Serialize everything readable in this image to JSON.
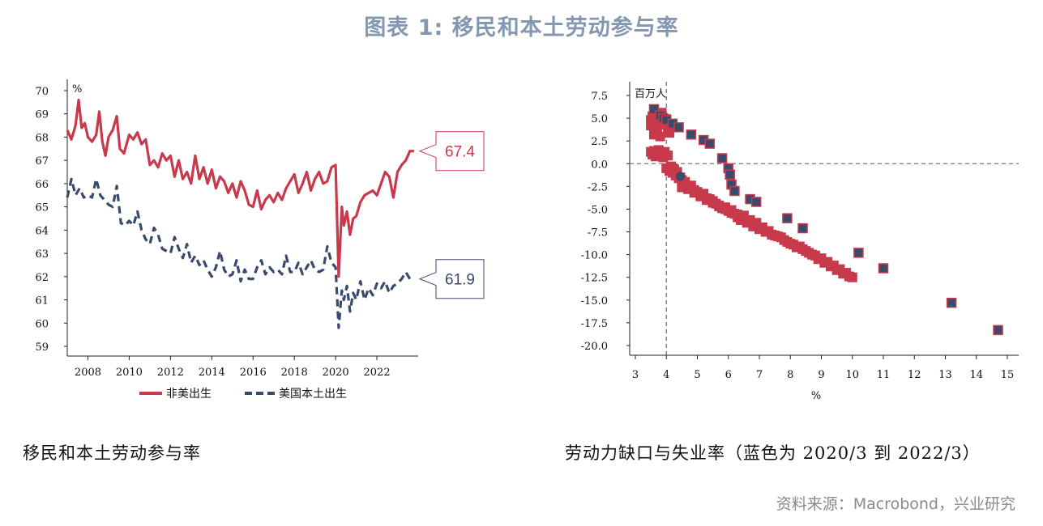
{
  "header": {
    "title": "图表 1:  移民和本土劳动参与率"
  },
  "captions": {
    "left": "移民和本土劳动参与率",
    "right": "劳动力缺口与失业率（蓝色为 2020/3 到 2022/3）"
  },
  "source": "资料来源：Macrobond，兴业研究",
  "colors": {
    "foreign": "#c8394c",
    "native": "#3a4a6b",
    "title": "#8497b0"
  },
  "chart_data": [
    {
      "type": "line",
      "title": "",
      "ylabel": "%",
      "xlabel": "",
      "ylim": [
        59,
        70
      ],
      "xlim": [
        2007.0,
        2024.0
      ],
      "yticks": [
        "70",
        "69",
        "68",
        "67",
        "66",
        "65",
        "64",
        "63",
        "62",
        "61",
        "60",
        "59"
      ],
      "xticks": [
        "2008",
        "2010",
        "2012",
        "2014",
        "2016",
        "2018",
        "2020",
        "2022"
      ],
      "legend_position": "bottom",
      "series": [
        {
          "name": "非美出生",
          "style": "solid",
          "x": [
            2007.0,
            2007.2,
            2007.4,
            2007.55,
            2007.7,
            2007.85,
            2008.0,
            2008.2,
            2008.4,
            2008.55,
            2008.7,
            2008.85,
            2009.0,
            2009.2,
            2009.4,
            2009.55,
            2009.75,
            2010.0,
            2010.2,
            2010.4,
            2010.6,
            2010.8,
            2011.0,
            2011.2,
            2011.4,
            2011.6,
            2011.8,
            2012.0,
            2012.2,
            2012.4,
            2012.6,
            2012.8,
            2013.0,
            2013.2,
            2013.4,
            2013.6,
            2013.8,
            2014.0,
            2014.2,
            2014.4,
            2014.6,
            2014.8,
            2015.0,
            2015.2,
            2015.4,
            2015.6,
            2015.8,
            2016.0,
            2016.2,
            2016.4,
            2016.6,
            2016.8,
            2017.0,
            2017.2,
            2017.4,
            2017.6,
            2017.8,
            2018.0,
            2018.2,
            2018.4,
            2018.6,
            2018.8,
            2019.0,
            2019.2,
            2019.4,
            2019.6,
            2019.8,
            2020.0,
            2020.15,
            2020.3,
            2020.4,
            2020.55,
            2020.7,
            2020.85,
            2021.0,
            2021.2,
            2021.4,
            2021.6,
            2021.8,
            2022.0,
            2022.2,
            2022.4,
            2022.6,
            2022.8,
            2023.0,
            2023.2,
            2023.4,
            2023.6,
            2023.8
          ],
          "values": [
            68.3,
            67.9,
            68.5,
            69.6,
            68.4,
            68.6,
            68.0,
            67.8,
            68.1,
            69.1,
            67.8,
            67.2,
            68.0,
            68.3,
            68.9,
            67.5,
            67.3,
            68.1,
            67.9,
            68.2,
            67.7,
            67.9,
            66.8,
            67.0,
            66.7,
            67.3,
            67.0,
            67.2,
            66.3,
            67.0,
            66.2,
            66.5,
            66.0,
            67.2,
            66.2,
            66.7,
            66.0,
            66.6,
            65.8,
            66.3,
            66.1,
            65.6,
            66.0,
            65.4,
            66.1,
            65.7,
            65.1,
            65.0,
            65.7,
            64.9,
            65.3,
            65.5,
            65.2,
            65.6,
            65.3,
            65.8,
            66.1,
            66.4,
            65.6,
            66.0,
            66.5,
            65.7,
            66.2,
            66.5,
            66.0,
            66.1,
            66.7,
            66.8,
            62.0,
            65.0,
            64.2,
            64.8,
            63.8,
            64.5,
            64.6,
            65.2,
            65.5,
            65.6,
            65.7,
            65.5,
            66.0,
            66.5,
            66.3,
            65.4,
            66.5,
            66.8,
            67.0,
            67.4,
            67.4
          ]
        },
        {
          "name": "美国本土出生",
          "style": "dashed",
          "x": [
            2007.0,
            2007.2,
            2007.4,
            2007.6,
            2007.8,
            2008.0,
            2008.2,
            2008.4,
            2008.6,
            2008.8,
            2009.0,
            2009.2,
            2009.4,
            2009.6,
            2009.8,
            2010.0,
            2010.2,
            2010.4,
            2010.6,
            2010.8,
            2011.0,
            2011.2,
            2011.4,
            2011.6,
            2011.8,
            2012.0,
            2012.2,
            2012.4,
            2012.6,
            2012.8,
            2013.0,
            2013.2,
            2013.4,
            2013.6,
            2013.8,
            2014.0,
            2014.2,
            2014.4,
            2014.6,
            2014.8,
            2015.0,
            2015.2,
            2015.4,
            2015.6,
            2015.8,
            2016.0,
            2016.2,
            2016.4,
            2016.6,
            2016.8,
            2017.0,
            2017.2,
            2017.4,
            2017.6,
            2017.8,
            2018.0,
            2018.2,
            2018.4,
            2018.6,
            2018.8,
            2019.0,
            2019.2,
            2019.4,
            2019.6,
            2019.8,
            2020.0,
            2020.15,
            2020.3,
            2020.4,
            2020.55,
            2020.7,
            2020.85,
            2021.0,
            2021.2,
            2021.4,
            2021.6,
            2021.8,
            2022.0,
            2022.2,
            2022.4,
            2022.6,
            2022.8,
            2023.0,
            2023.2,
            2023.4,
            2023.6,
            2023.8
          ],
          "values": [
            65.4,
            66.2,
            65.5,
            65.8,
            65.4,
            65.5,
            65.4,
            66.2,
            65.5,
            65.3,
            65.1,
            65.0,
            65.9,
            64.3,
            64.2,
            64.4,
            64.2,
            64.8,
            64.0,
            63.6,
            63.4,
            64.1,
            63.8,
            63.2,
            63.1,
            63.0,
            63.7,
            63.2,
            62.8,
            63.4,
            62.6,
            62.9,
            62.5,
            62.7,
            62.3,
            62.0,
            62.4,
            63.1,
            62.3,
            62.0,
            62.1,
            62.7,
            61.8,
            62.3,
            61.9,
            61.9,
            62.4,
            62.7,
            62.1,
            62.4,
            62.2,
            62.3,
            62.1,
            62.9,
            62.2,
            62.2,
            62.6,
            62.1,
            62.4,
            62.7,
            62.3,
            62.2,
            62.3,
            63.3,
            62.6,
            62.4,
            59.8,
            61.4,
            61.0,
            61.6,
            60.5,
            61.3,
            61.0,
            61.8,
            61.0,
            61.5,
            61.2,
            61.7,
            61.5,
            61.8,
            61.3,
            61.6,
            61.7,
            61.9,
            62.2,
            61.9,
            61.9
          ]
        }
      ],
      "annotations": [
        {
          "series": "非美出生",
          "label": "67.4"
        },
        {
          "series": "美国本土出生",
          "label": "61.9"
        }
      ]
    },
    {
      "type": "scatter",
      "title": "",
      "ylabel": "百万人",
      "xlabel": "%",
      "xlim": [
        2.5,
        15.4
      ],
      "ylim": [
        -21.5,
        8.7
      ],
      "xticks": [
        "3",
        "4",
        "5",
        "6",
        "7",
        "8",
        "9",
        "10",
        "11",
        "12",
        "13",
        "14",
        "15"
      ],
      "yticks": [
        "7.5",
        "5.0",
        "2.5",
        "0.0",
        "-2.5",
        "-5.0",
        "-7.5",
        "-10.0",
        "-12.5",
        "-15.0",
        "-17.5",
        "-20.0"
      ],
      "reference_lines": {
        "y": 0.0,
        "x": 4.0
      },
      "series": [
        {
          "name": "",
          "color": "red",
          "x": [
            3.5,
            3.5,
            3.55,
            3.6,
            3.65,
            3.7,
            3.75,
            3.8,
            3.85,
            3.9,
            3.6,
            3.7,
            3.8,
            3.9,
            4.0,
            4.05,
            4.1,
            3.5,
            3.55,
            3.6,
            3.65,
            3.7,
            3.75,
            3.8,
            3.85,
            3.9,
            3.95,
            4.0,
            4.05,
            4.1,
            4.15,
            4.2,
            4.25,
            4.3,
            4.35,
            4.4,
            4.45,
            4.5,
            4.6,
            4.7,
            4.8,
            4.9,
            5.0,
            5.1,
            5.2,
            5.3,
            5.4,
            5.5,
            5.6,
            5.7,
            5.8,
            5.9,
            6.0,
            6.1,
            6.2,
            6.3,
            6.4,
            6.6,
            6.8,
            7.0,
            7.2,
            7.4,
            7.6,
            7.8,
            8.0,
            8.2,
            8.4,
            8.6,
            8.8,
            9.0,
            9.2,
            9.4,
            9.6,
            9.8,
            10.0,
            4.5,
            4.7,
            4.9,
            5.1,
            5.3,
            5.5,
            5.7,
            5.9,
            6.1,
            6.3,
            6.5,
            6.7,
            6.9,
            7.1,
            7.3,
            7.5,
            7.7,
            7.9,
            8.1,
            8.3,
            8.5,
            8.7,
            8.9,
            9.1,
            9.3,
            9.5,
            9.7,
            9.9
          ],
          "y": [
            4.8,
            4.2,
            5.2,
            4.5,
            5.5,
            3.8,
            4.9,
            4.3,
            5.6,
            5.0,
            3.2,
            4.0,
            3.0,
            4.4,
            4.9,
            3.8,
            3.4,
            1.3,
            1.0,
            1.4,
            0.8,
            1.2,
            1.5,
            1.0,
            1.1,
            0.7,
            1.3,
            -0.5,
            0.9,
            -0.8,
            -0.3,
            -1.0,
            -0.6,
            -1.3,
            -0.9,
            -1.6,
            -1.5,
            -1.8,
            -2.0,
            -2.5,
            -2.4,
            -2.9,
            -3.1,
            -3.4,
            -3.3,
            -3.8,
            -3.9,
            -4.1,
            -4.4,
            -4.6,
            -4.9,
            -5.0,
            -5.2,
            -5.4,
            -5.5,
            -5.9,
            -6.2,
            -6.5,
            -6.9,
            -7.2,
            -7.5,
            -7.8,
            -8.0,
            -8.4,
            -8.8,
            -9.2,
            -9.4,
            -9.8,
            -10.1,
            -10.4,
            -10.8,
            -11.2,
            -11.6,
            -12.0,
            -12.5,
            -2.6,
            -2.8,
            -3.2,
            -3.6,
            -4.0,
            -4.3,
            -4.7,
            -4.8,
            -5.1,
            -5.6,
            -5.7,
            -6.2,
            -6.5,
            -7.0,
            -7.4,
            -7.9,
            -8.1,
            -8.6,
            -8.9,
            -9.1,
            -9.6,
            -10.0,
            -10.5,
            -10.9,
            -11.3,
            -11.7,
            -12.1,
            -12.4
          ]
        },
        {
          "name": "",
          "color": "blue",
          "x": [
            3.6,
            3.8,
            3.9,
            4.0,
            4.2,
            4.4,
            4.8,
            5.2,
            5.4,
            5.8,
            6.0,
            6.05,
            6.1,
            6.2,
            6.7,
            6.9,
            7.9,
            8.4,
            10.2,
            11.0,
            13.2,
            14.7,
            4.45
          ],
          "y": [
            6.0,
            5.3,
            5.0,
            4.8,
            4.4,
            4.0,
            3.2,
            2.6,
            2.2,
            0.6,
            -0.5,
            -1.2,
            -2.3,
            -3.0,
            -3.9,
            -4.2,
            -6.0,
            -7.1,
            -9.8,
            -11.5,
            -15.3,
            -18.3,
            -1.4
          ]
        }
      ]
    }
  ]
}
